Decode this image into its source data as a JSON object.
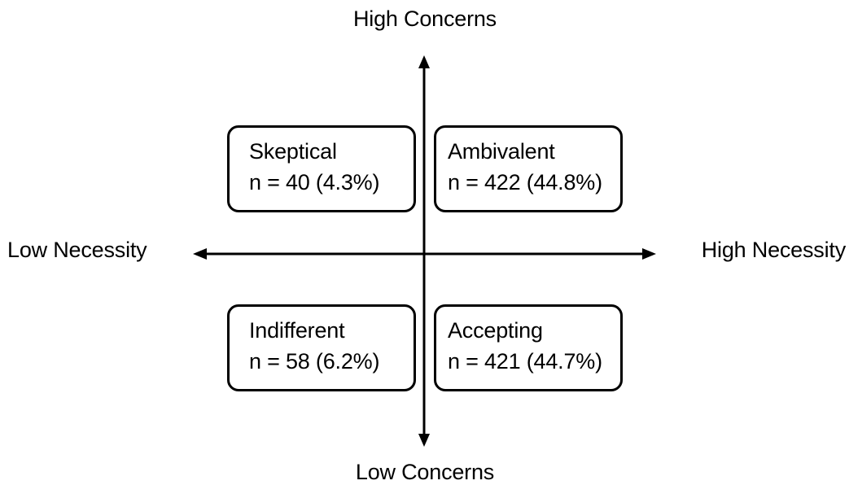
{
  "axes": {
    "top_label": "High Concerns",
    "bottom_label": "Low Concerns",
    "left_label": "Low Necessity",
    "right_label": "High Necessity"
  },
  "quadrants": [
    {
      "name": "Skeptical",
      "count_text": "n = 40 (4.3%)",
      "n": 40,
      "percent": 4.3
    },
    {
      "name": "Ambivalent",
      "count_text": "n = 422 (44.8%)",
      "n": 422,
      "percent": 44.8
    },
    {
      "name": "Indifferent",
      "count_text": "n = 58 (6.2%)",
      "n": 58,
      "percent": 6.2
    },
    {
      "name": "Accepting",
      "count_text": "n = 421 (44.7%)",
      "n": 421,
      "percent": 44.7
    }
  ]
}
